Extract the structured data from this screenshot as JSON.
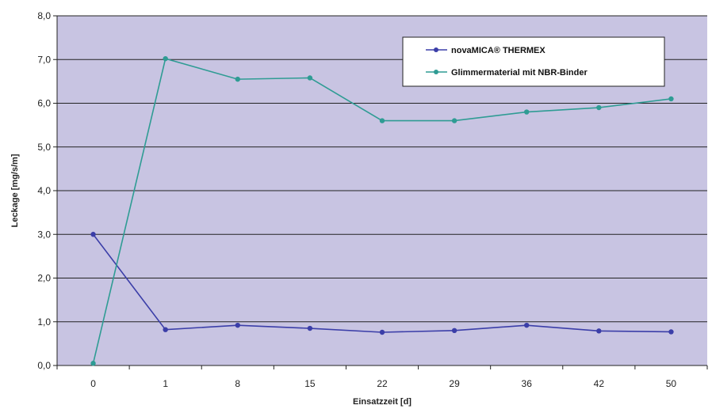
{
  "chart_data": {
    "type": "line",
    "title": "",
    "xlabel": "Einsatzzeit [d]",
    "ylabel": "Leckage [mg/s/m]",
    "categories": [
      "0",
      "1",
      "8",
      "15",
      "22",
      "29",
      "36",
      "42",
      "50"
    ],
    "ylim": [
      0,
      8
    ],
    "yticks": [
      "0,0",
      "1,0",
      "2,0",
      "3,0",
      "4,0",
      "5,0",
      "6,0",
      "7,0",
      "8,0"
    ],
    "grid": true,
    "legend_position": "top-right",
    "plot_background": "#c8c4e2",
    "series": [
      {
        "name": "novaMICA® THERMEX",
        "color": "#3b3ea8",
        "values": [
          3.0,
          0.82,
          0.92,
          0.85,
          0.76,
          0.8,
          0.92,
          0.79,
          0.77
        ]
      },
      {
        "name": "Glimmermaterial mit NBR-Binder",
        "color": "#2f9c94",
        "values": [
          0.05,
          7.02,
          6.55,
          6.58,
          5.6,
          5.6,
          5.8,
          5.9,
          6.1
        ]
      }
    ]
  }
}
